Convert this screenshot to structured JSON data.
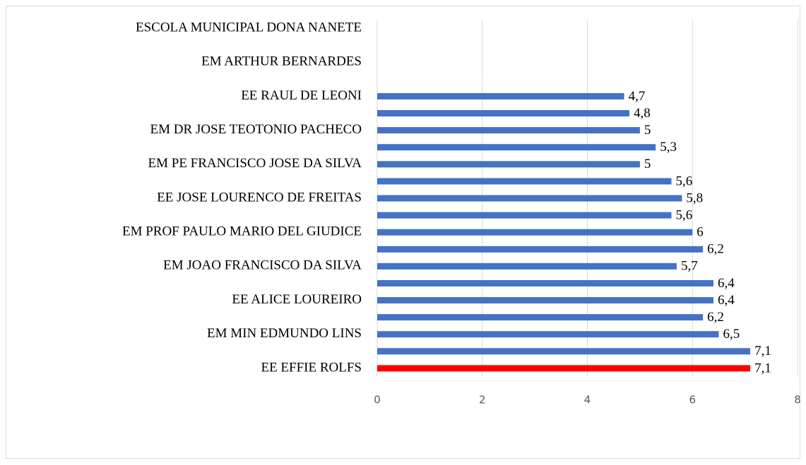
{
  "chart_data": {
    "type": "barh",
    "categories": [
      "EE EFFIE ROLFS",
      null,
      "EM MIN EDMUNDO LINS",
      null,
      "EE ALICE LOUREIRO",
      null,
      "EM JOAO FRANCISCO DA SILVA",
      null,
      "EM PROF PAULO MARIO DEL GIUDICE",
      null,
      "EE JOSE LOURENCO DE FREITAS",
      null,
      "EM PE FRANCISCO JOSE DA SILVA",
      null,
      "EM DR JOSE TEOTONIO PACHECO",
      null,
      "EE RAUL DE LEONI",
      null,
      "EM ARTHUR BERNARDES",
      null,
      "ESCOLA MUNICIPAL DONA NANETE"
    ],
    "values": [
      7.1,
      7.1,
      6.5,
      6.2,
      6.4,
      6.4,
      5.7,
      6.2,
      6,
      5.6,
      5.8,
      5.6,
      5,
      5.3,
      5,
      4.8,
      4.7,
      null,
      null,
      null,
      null
    ],
    "value_labels": [
      "7,1",
      "7,1",
      "6,5",
      "6,2",
      "6,4",
      "6,4",
      "5,7",
      "6,2",
      "6",
      "5,6",
      "5,8",
      "5,6",
      "5",
      "5,3",
      "5",
      "4,8",
      "4,7",
      null,
      null,
      null,
      null
    ],
    "colors": [
      "#ff0000",
      "#4472c4",
      "#4472c4",
      "#4472c4",
      "#4472c4",
      "#4472c4",
      "#4472c4",
      "#4472c4",
      "#4472c4",
      "#4472c4",
      "#4472c4",
      "#4472c4",
      "#4472c4",
      "#4472c4",
      "#4472c4",
      "#4472c4",
      "#4472c4",
      "#4472c4",
      "#4472c4",
      "#4472c4",
      "#4472c4"
    ],
    "xlim": [
      0,
      8
    ],
    "xticks": [
      0,
      2,
      4,
      6,
      8
    ],
    "grid": true
  }
}
